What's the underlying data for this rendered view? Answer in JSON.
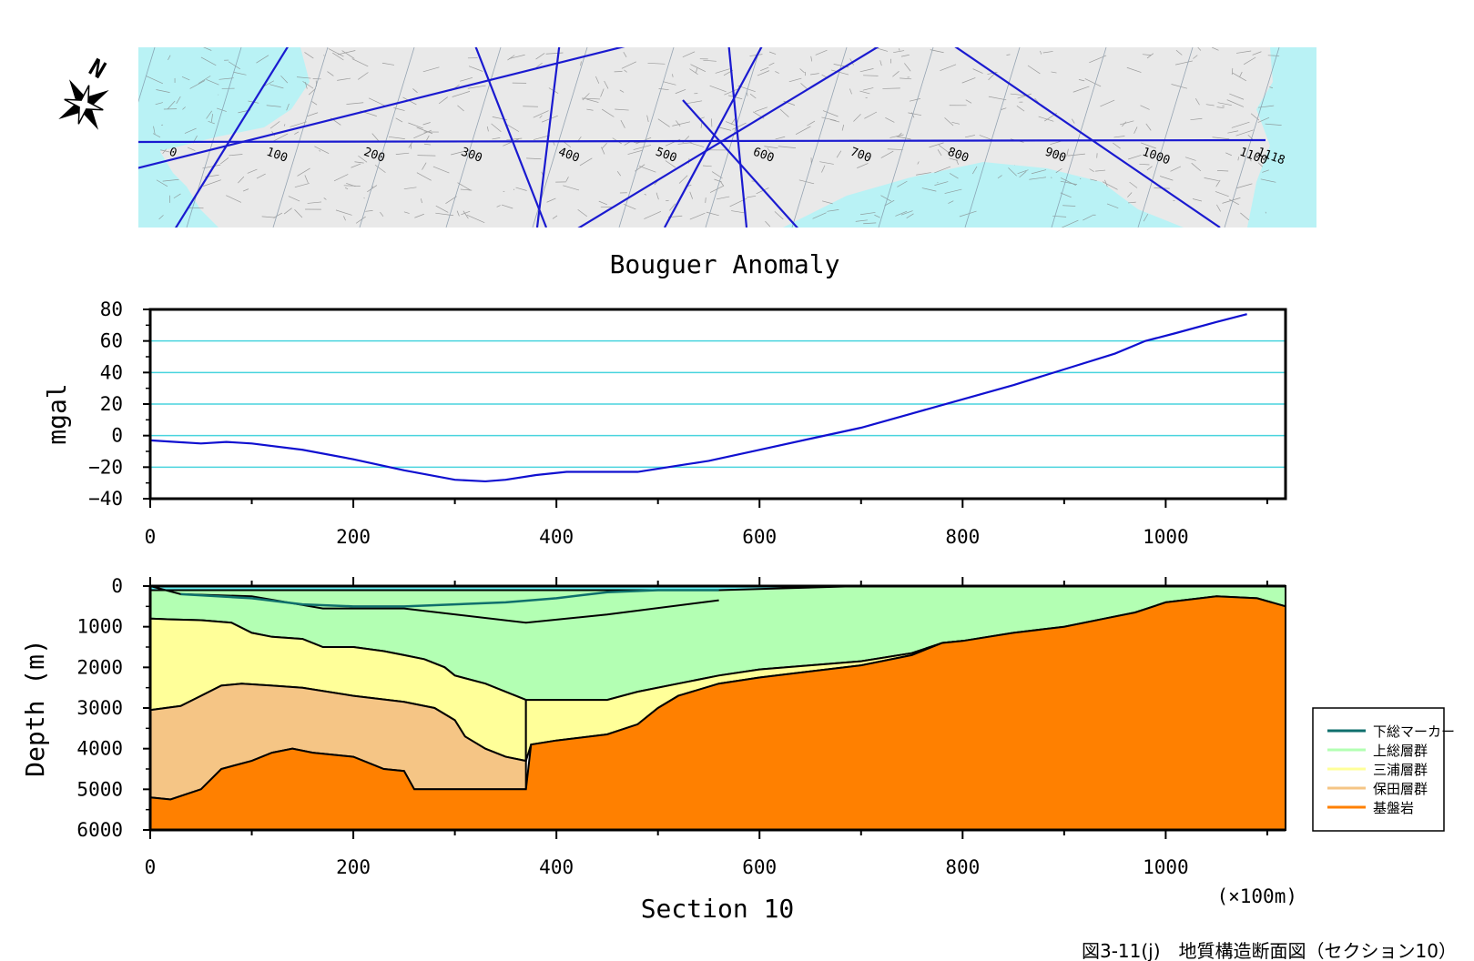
{
  "map": {
    "section_marks": [
      "0",
      "100",
      "200",
      "300",
      "400",
      "500",
      "600",
      "700",
      "800",
      "900",
      "1000",
      "1100",
      "1118"
    ]
  },
  "gravity": {
    "title": "Bouguer Anomaly",
    "ylabel": "mgal"
  },
  "geology": {
    "ylabel": "Depth (m)",
    "xlabel": "Section 10",
    "unit_note": "(×100m)"
  },
  "legend": {
    "items": [
      {
        "label": "下総マーカー",
        "color": "#0f6f6c",
        "kind": "line"
      },
      {
        "label": "上総層群",
        "color": "#b3ffb3",
        "kind": "fill"
      },
      {
        "label": "三浦層群",
        "color": "#ffff99",
        "kind": "fill"
      },
      {
        "label": "保田層群",
        "color": "#f5c585",
        "kind": "fill"
      },
      {
        "label": "基盤岩",
        "color": "#ff8000",
        "kind": "fill"
      }
    ]
  },
  "caption": "図3-11(j)　地質構造断面図（セクション10）",
  "chart_data": [
    {
      "type": "line",
      "title": "Bouguer Anomaly",
      "xlabel": "",
      "ylabel": "mgal",
      "xlim": [
        0,
        1118
      ],
      "ylim": [
        -40,
        80
      ],
      "xticks": [
        0,
        200,
        400,
        600,
        800,
        1000
      ],
      "yticks": [
        80,
        60,
        40,
        20,
        0,
        -20,
        -40
      ],
      "grid": true,
      "series": [
        {
          "color": "#1010d0",
          "x": [
            0,
            25,
            50,
            75,
            100,
            150,
            200,
            250,
            300,
            330,
            350,
            380,
            410,
            450,
            480,
            500,
            550,
            600,
            650,
            700,
            750,
            800,
            850,
            900,
            950,
            980,
            1010,
            1050,
            1080
          ],
          "y": [
            -3,
            -4,
            -5,
            -4,
            -5,
            -9,
            -15,
            -22,
            -28,
            -29,
            -28,
            -25,
            -23,
            -23,
            -23,
            -21,
            -16,
            -9,
            -2,
            5,
            14,
            23,
            32,
            42,
            52,
            60,
            65,
            72,
            77
          ]
        }
      ]
    },
    {
      "type": "area",
      "title": "",
      "xlabel": "Section 10",
      "ylabel": "Depth (m)",
      "xlim": [
        0,
        1118
      ],
      "ylim": [
        6000,
        0
      ],
      "xticks": [
        0,
        200,
        400,
        600,
        800,
        1000
      ],
      "yticks": [
        0,
        1000,
        2000,
        3000,
        4000,
        5000,
        6000
      ],
      "legend_position": "right",
      "series": [
        {
          "name": "上総層群",
          "color": "#b3ffb3",
          "note": "base depth (m)",
          "x": [
            0,
            20,
            50,
            80,
            100,
            120,
            150,
            170,
            200,
            230,
            250,
            270,
            290,
            300,
            330,
            360,
            370,
            400,
            450,
            480,
            520,
            560,
            600,
            650,
            700,
            750,
            780,
            800,
            850,
            900,
            940,
            970,
            1000,
            1050,
            1090,
            1118
          ],
          "y": [
            800,
            820,
            840,
            900,
            1150,
            1250,
            1300,
            1500,
            1500,
            1600,
            1700,
            1800,
            2000,
            2200,
            2400,
            2700,
            2800,
            2800,
            2800,
            2600,
            2400,
            2200,
            2050,
            1950,
            1850,
            1650,
            1400,
            1350,
            1150,
            1000,
            800,
            650,
            400,
            250,
            300,
            500
          ]
        },
        {
          "name": "三浦層群",
          "color": "#ffff99",
          "note": "base depth (m)",
          "x": [
            0,
            30,
            50,
            70,
            90,
            120,
            150,
            200,
            250,
            260,
            280,
            300,
            310,
            330,
            350,
            370
          ],
          "y": [
            3050,
            2950,
            2700,
            2450,
            2400,
            2450,
            2500,
            2700,
            2850,
            2900,
            3000,
            3300,
            3700,
            4000,
            4200,
            4300
          ]
        },
        {
          "name": "保田層群",
          "color": "#f5c585",
          "note": "base depth (m)",
          "x": [
            0,
            20,
            50,
            70,
            100,
            120,
            140,
            160,
            200,
            230,
            250,
            260,
            300,
            340,
            370
          ],
          "y": [
            5200,
            5250,
            5000,
            4500,
            4300,
            4100,
            4000,
            4100,
            4200,
            4500,
            4550,
            5000,
            5000,
            5000,
            5000
          ]
        },
        {
          "name": "基盤岩",
          "color": "#ff8000",
          "note": "top depth (m)",
          "x": [
            0,
            20,
            50,
            70,
            100,
            120,
            140,
            160,
            200,
            230,
            250,
            260,
            300,
            340,
            370,
            375,
            400,
            450,
            480,
            500,
            520,
            560,
            600,
            650,
            700,
            750,
            780,
            800,
            850,
            900,
            940,
            970,
            1000,
            1050,
            1090,
            1118
          ],
          "y": [
            5200,
            5250,
            5000,
            4500,
            4300,
            4100,
            4000,
            4100,
            4200,
            4500,
            4550,
            5000,
            5000,
            5000,
            5000,
            3900,
            3800,
            3650,
            3400,
            3000,
            2700,
            2400,
            2250,
            2100,
            1950,
            1700,
            1400,
            1350,
            1150,
            1000,
            800,
            650,
            400,
            250,
            300,
            500
          ]
        },
        {
          "name": "下総マーカー",
          "color": "#0f6f6c",
          "kind": "line",
          "x": [
            30,
            100,
            150,
            200,
            250,
            300,
            350,
            400,
            450,
            500,
            560
          ],
          "y": [
            200,
            300,
            450,
            500,
            500,
            450,
            400,
            300,
            150,
            100,
            100
          ]
        }
      ]
    }
  ]
}
